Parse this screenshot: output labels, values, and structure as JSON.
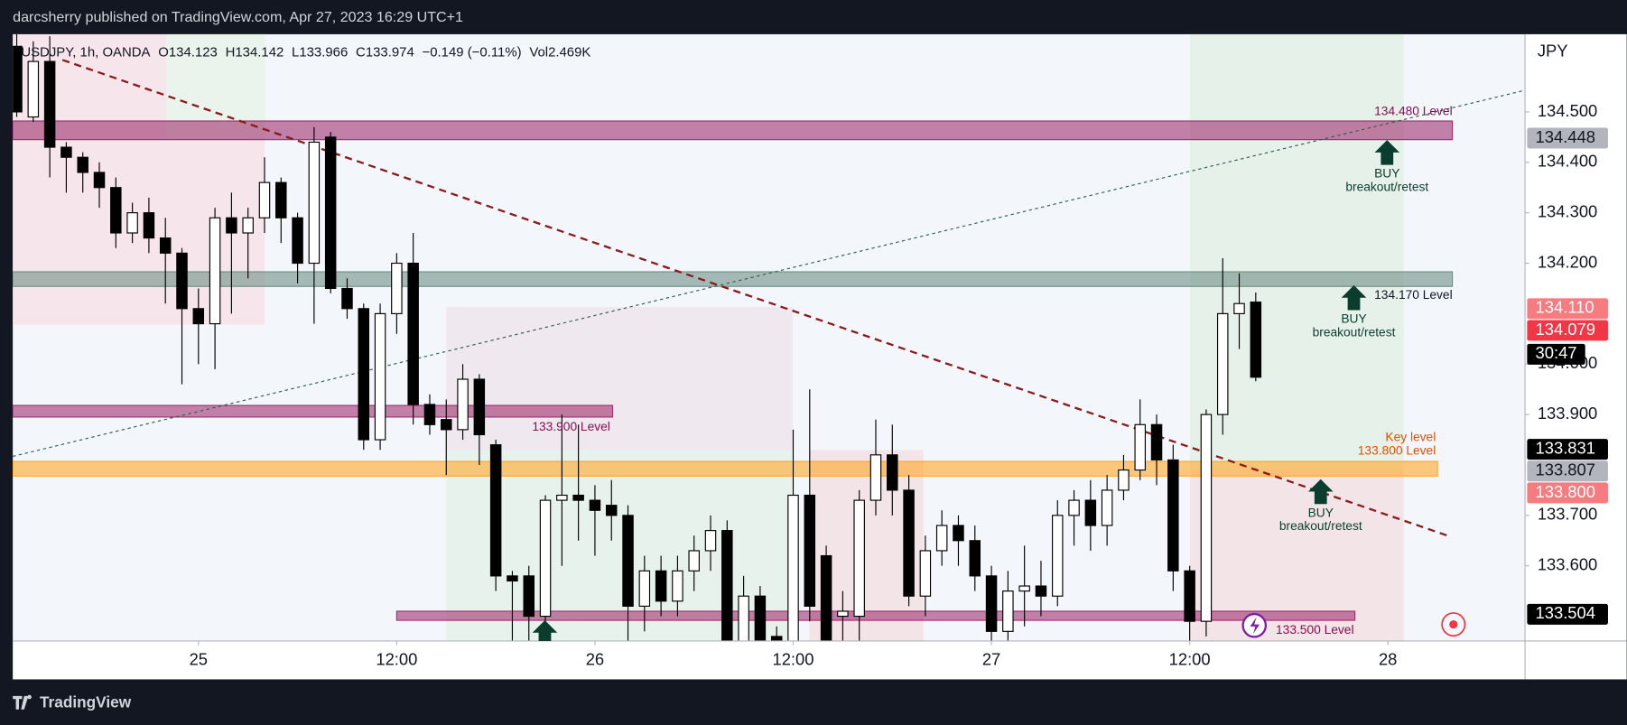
{
  "header": {
    "publisher": "darcsherry published on TradingView.com, Apr 27, 2023 16:29 UTC+1"
  },
  "footer": {
    "brand": "TradingView"
  },
  "chart_data": {
    "type": "candlestick",
    "symbol": "USDJPY, 1h, OANDA",
    "ohlc_legend": [
      "O134.123",
      "H134.142",
      "L133.966",
      "C133.974",
      "−0.149 (−0.11%)",
      "Vol2.469K"
    ],
    "currency": "JPY",
    "up_color": "#ffffff",
    "down_color": "#000000",
    "x": [
      -11,
      -10,
      -9,
      -8,
      -7,
      -6,
      -5,
      -4,
      -3,
      -2,
      -1,
      0,
      1,
      2,
      3,
      4,
      5,
      6,
      7,
      8,
      9,
      10,
      11,
      12,
      13,
      14,
      15,
      16,
      17,
      18,
      19,
      20,
      21,
      22,
      23,
      24,
      25,
      26,
      27,
      28,
      29,
      30,
      31,
      32,
      33,
      34,
      35,
      36,
      37,
      38,
      39,
      40,
      41,
      42,
      43,
      44,
      45,
      46,
      47,
      48,
      49,
      50,
      51,
      52,
      53,
      54,
      55,
      56,
      57,
      58,
      59,
      60,
      61,
      62,
      63,
      64
    ],
    "open": [
      134.63,
      134.49,
      134.6,
      134.43,
      134.41,
      134.38,
      134.35,
      134.26,
      134.3,
      134.25,
      134.22,
      134.11,
      134.08,
      134.29,
      134.26,
      134.29,
      134.36,
      134.29,
      134.2,
      134.45,
      134.15,
      134.11,
      133.85,
      134.1,
      134.2,
      133.92,
      133.89,
      133.87,
      133.97,
      133.84,
      133.58,
      133.58,
      133.5,
      133.73,
      133.74,
      133.73,
      133.72,
      133.7,
      133.52,
      133.59,
      133.53,
      133.59,
      133.63,
      133.67,
      133.45,
      133.54,
      133.46,
      133.45,
      133.74,
      133.62,
      133.5,
      133.5,
      133.73,
      133.82,
      133.75,
      133.54,
      133.63,
      133.68,
      133.65,
      133.58,
      133.47,
      133.55,
      133.56,
      133.54,
      133.7,
      133.73,
      133.68,
      133.75,
      133.79,
      133.88,
      133.81,
      133.59,
      133.49,
      133.9,
      134.1,
      134.123
    ],
    "high": [
      134.66,
      134.64,
      134.65,
      134.44,
      134.42,
      134.4,
      134.37,
      134.32,
      134.33,
      134.29,
      134.23,
      134.15,
      134.31,
      134.34,
      134.31,
      134.41,
      134.37,
      134.3,
      134.47,
      134.46,
      134.17,
      134.12,
      134.12,
      134.22,
      134.26,
      133.94,
      133.93,
      134.0,
      133.98,
      133.85,
      133.59,
      133.6,
      133.74,
      133.9,
      133.88,
      133.76,
      133.77,
      133.72,
      133.62,
      133.62,
      133.62,
      133.66,
      133.7,
      133.69,
      133.58,
      133.56,
      133.48,
      133.87,
      133.95,
      133.64,
      133.55,
      133.75,
      133.89,
      133.88,
      133.78,
      133.66,
      133.71,
      133.7,
      133.68,
      133.6,
      133.59,
      133.64,
      133.61,
      133.73,
      133.75,
      133.77,
      133.78,
      133.82,
      133.93,
      133.9,
      133.84,
      133.6,
      133.91,
      134.21,
      134.18,
      134.142
    ],
    "low": [
      134.49,
      134.48,
      134.37,
      134.34,
      134.34,
      134.31,
      134.23,
      134.24,
      134.22,
      134.12,
      133.96,
      134.0,
      133.99,
      134.1,
      134.17,
      134.26,
      134.24,
      134.16,
      134.08,
      134.14,
      134.09,
      133.83,
      133.83,
      134.06,
      133.88,
      133.86,
      133.78,
      133.85,
      133.8,
      133.55,
      133.45,
      133.45,
      133.48,
      133.6,
      133.65,
      133.62,
      133.65,
      133.45,
      133.47,
      133.5,
      133.5,
      133.55,
      133.59,
      133.44,
      133.44,
      133.44,
      133.44,
      133.44,
      133.49,
      133.44,
      133.45,
      133.45,
      133.7,
      133.7,
      133.52,
      133.5,
      133.6,
      133.6,
      133.55,
      133.45,
      133.45,
      133.48,
      133.5,
      133.52,
      133.64,
      133.63,
      133.64,
      133.73,
      133.77,
      133.76,
      133.55,
      133.45,
      133.46,
      133.86,
      134.03,
      133.966
    ],
    "close": [
      134.5,
      134.6,
      134.43,
      134.41,
      134.38,
      134.35,
      134.26,
      134.3,
      134.25,
      134.22,
      134.11,
      134.08,
      134.29,
      134.26,
      134.29,
      134.36,
      134.29,
      134.2,
      134.44,
      134.15,
      134.11,
      133.85,
      134.1,
      134.2,
      133.92,
      133.88,
      133.87,
      133.97,
      133.86,
      133.58,
      133.57,
      133.5,
      133.73,
      133.74,
      133.73,
      133.71,
      133.7,
      133.52,
      133.59,
      133.53,
      133.59,
      133.63,
      133.67,
      133.45,
      133.54,
      133.45,
      133.45,
      133.74,
      133.52,
      133.45,
      133.51,
      133.73,
      133.82,
      133.75,
      133.54,
      133.63,
      133.68,
      133.65,
      133.58,
      133.47,
      133.55,
      133.56,
      133.54,
      133.7,
      133.73,
      133.68,
      133.75,
      133.79,
      133.88,
      133.81,
      133.59,
      133.49,
      133.9,
      134.1,
      134.12,
      133.974
    ],
    "xlim": [
      -11.24,
      80.3
    ],
    "xticks": [
      {
        "value": 0,
        "label": "25"
      },
      {
        "value": 12,
        "label": "12:00"
      },
      {
        "value": 24,
        "label": "26"
      },
      {
        "value": 36,
        "label": "12:00"
      },
      {
        "value": 48,
        "label": "27"
      },
      {
        "value": 60,
        "label": "12:00"
      },
      {
        "value": 72,
        "label": "28"
      }
    ],
    "ylim": [
      133.451,
      134.654
    ],
    "yticks": [
      {
        "value": 134.5,
        "label": "134.500"
      },
      {
        "value": 134.4,
        "label": "134.400"
      },
      {
        "value": 134.3,
        "label": "134.300"
      },
      {
        "value": 134.2,
        "label": "134.200"
      },
      {
        "value": 134.0,
        "label": "134.000"
      },
      {
        "value": 133.9,
        "label": "133.900"
      },
      {
        "value": 133.7,
        "label": "133.700"
      },
      {
        "value": 133.6,
        "label": "133.600"
      }
    ],
    "zones": [
      {
        "label": "134.480 Level",
        "from": 134.445,
        "to": 134.482,
        "start": -11.24,
        "end": 75.9,
        "color": "#a0306e",
        "text_color": "#880e4f"
      },
      {
        "label": "134.170 Level",
        "from": 134.154,
        "to": 134.183,
        "start": -11.24,
        "end": 75.9,
        "color": "#6f8f85",
        "text_color": "#131722"
      },
      {
        "label": "133.900 Level",
        "from": 133.895,
        "to": 133.918,
        "start": -11.24,
        "end": 25.07,
        "color": "#a0306e",
        "text_color": "#880e4f"
      },
      {
        "title": "Key level",
        "label": "133.800 Level",
        "from": 133.778,
        "to": 133.807,
        "start": -11.24,
        "end": 75.0,
        "color": "#ffa726",
        "text_color": "#e65100"
      },
      {
        "label": "133.500 Level",
        "from": 133.492,
        "to": 133.51,
        "start": 12.0,
        "end": 70.0,
        "color": "#a0306e",
        "text_color": "#880e4f"
      }
    ],
    "trendlines": [
      {
        "start": -8.23,
        "from": 134.603,
        "end": 75.6,
        "to": 133.66,
        "color": "#8b1a1a"
      },
      {
        "start": -11.24,
        "from": 133.817,
        "end": 80.3,
        "to": 134.543,
        "color": "#2e5e4e"
      }
    ],
    "price_labels": [
      {
        "value": 134.448,
        "label": "134.448",
        "color": "#b2b5be",
        "text_color": "#131722"
      },
      {
        "value": 134.11,
        "label": "134.110",
        "color": "#f77c80",
        "text_color": "#ffffff"
      },
      {
        "value": 134.079,
        "label": "134.079",
        "color": "#f23645",
        "text_color": "#ffffff"
      },
      {
        "value": 133.831,
        "label": "133.831",
        "color": "#000000",
        "text_color": "#ffffff"
      },
      {
        "value": 133.807,
        "label": "133.807",
        "color": "#b2b5be",
        "text_color": "#131722"
      },
      {
        "value": 133.8,
        "label": "133.800",
        "color": "#f77c80",
        "text_color": "#ffffff"
      },
      {
        "value": 133.504,
        "label": "133.504",
        "color": "#000000",
        "text_color": "#ffffff"
      }
    ],
    "countdown": "30:47",
    "notes": [
      {
        "title": "BUY",
        "text": "breakout/retest"
      },
      {
        "title": "BUY",
        "text": "breakout/retest"
      },
      {
        "title": "BUY",
        "text": "breakout/retest"
      }
    ]
  }
}
